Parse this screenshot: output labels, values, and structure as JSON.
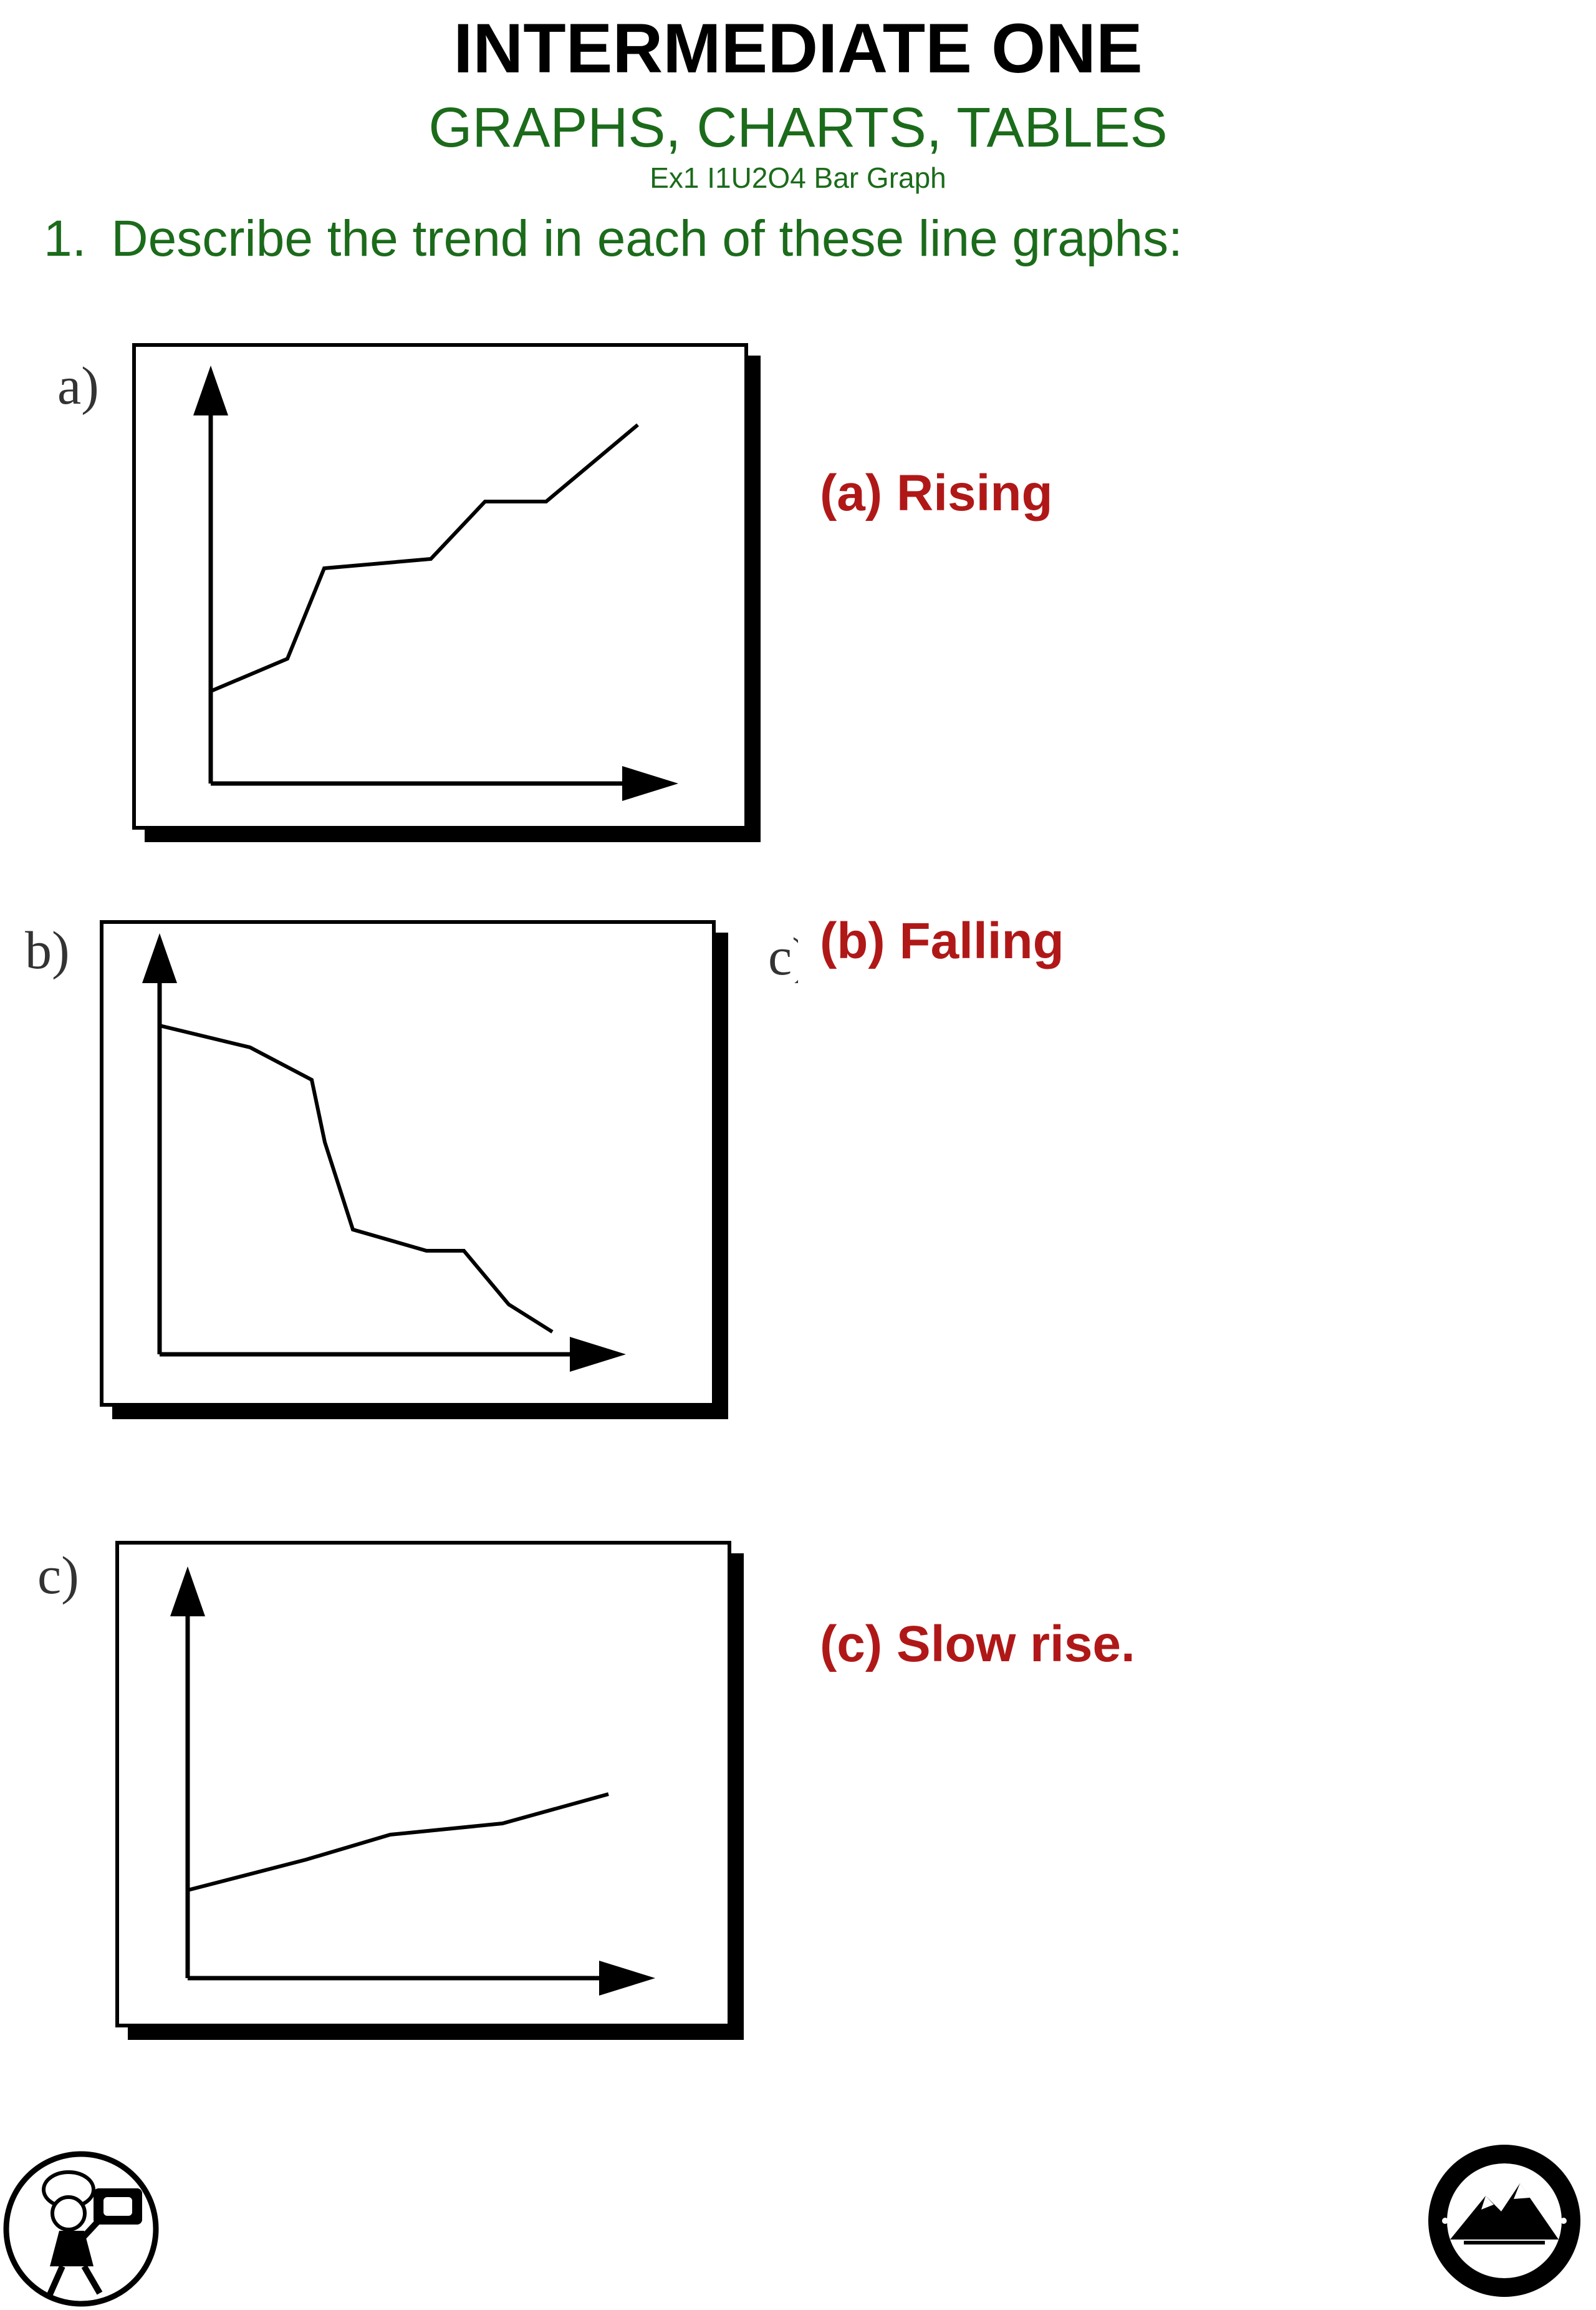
{
  "header": {
    "title": "INTERMEDIATE ONE",
    "subtitle": "GRAPHS, CHARTS, TABLES",
    "code": "Ex1 I1U2O4 Bar Graph"
  },
  "question": {
    "number": "1.",
    "text": "Describe the trend in each of these line graphs:"
  },
  "graphs": [
    {
      "letter": "a)",
      "answer": "(a) Rising"
    },
    {
      "letter": "b)",
      "answer": "(b) Falling"
    },
    {
      "letter": "c)",
      "answer": "(c) Slow rise."
    }
  ],
  "stray_text": "c)",
  "colors": {
    "title": "#000000",
    "heading_green": "#1b6b1b",
    "answer_red": "#b01818"
  },
  "logos": {
    "left": "chef-mascot-logo",
    "right": "higher-still-logo"
  }
}
